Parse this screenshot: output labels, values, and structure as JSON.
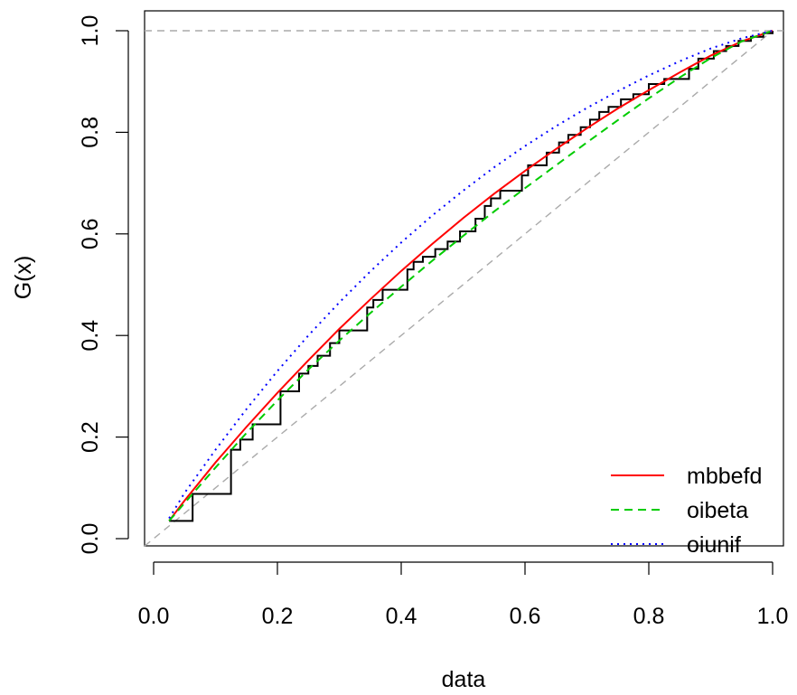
{
  "chart_data": {
    "type": "line",
    "xlabel": "data",
    "ylabel": "G(x)",
    "xlim": [
      0.0,
      1.0
    ],
    "ylim": [
      0.0,
      1.0
    ],
    "x_ticks": [
      "0.0",
      "0.2",
      "0.4",
      "0.6",
      "0.8",
      "1.0"
    ],
    "y_ticks": [
      "0.0",
      "0.2",
      "0.4",
      "0.6",
      "0.8",
      "1.0"
    ],
    "grid": false,
    "legend_position": "bottom-right",
    "reference_lines": [
      {
        "kind": "horizontal",
        "y": 1.0,
        "color": "#aaaaaa",
        "style": "dashed"
      },
      {
        "kind": "diagonal",
        "from": [
          0,
          0
        ],
        "to": [
          1,
          1
        ],
        "color": "#aaaaaa",
        "style": "dashed"
      }
    ],
    "empirical": {
      "color": "#000000",
      "steps": [
        [
          0.025,
          0.035
        ],
        [
          0.063,
          0.088
        ],
        [
          0.125,
          0.175
        ],
        [
          0.14,
          0.195
        ],
        [
          0.16,
          0.225
        ],
        [
          0.205,
          0.29
        ],
        [
          0.235,
          0.325
        ],
        [
          0.25,
          0.34
        ],
        [
          0.265,
          0.36
        ],
        [
          0.285,
          0.385
        ],
        [
          0.3,
          0.41
        ],
        [
          0.345,
          0.455
        ],
        [
          0.355,
          0.47
        ],
        [
          0.37,
          0.49
        ],
        [
          0.41,
          0.53
        ],
        [
          0.42,
          0.545
        ],
        [
          0.435,
          0.555
        ],
        [
          0.455,
          0.57
        ],
        [
          0.475,
          0.585
        ],
        [
          0.495,
          0.605
        ],
        [
          0.52,
          0.63
        ],
        [
          0.535,
          0.655
        ],
        [
          0.545,
          0.67
        ],
        [
          0.56,
          0.685
        ],
        [
          0.595,
          0.715
        ],
        [
          0.605,
          0.735
        ],
        [
          0.635,
          0.76
        ],
        [
          0.655,
          0.78
        ],
        [
          0.67,
          0.795
        ],
        [
          0.69,
          0.81
        ],
        [
          0.705,
          0.825
        ],
        [
          0.72,
          0.84
        ],
        [
          0.735,
          0.85
        ],
        [
          0.755,
          0.865
        ],
        [
          0.775,
          0.875
        ],
        [
          0.8,
          0.895
        ],
        [
          0.825,
          0.905
        ],
        [
          0.865,
          0.925
        ],
        [
          0.88,
          0.945
        ],
        [
          0.905,
          0.96
        ],
        [
          0.925,
          0.97
        ],
        [
          0.945,
          0.98
        ],
        [
          0.965,
          0.988
        ],
        [
          0.985,
          0.995
        ],
        [
          1.0,
          1.0
        ]
      ]
    },
    "series": [
      {
        "name": "mbbefd",
        "color": "#ff0000",
        "style": "solid",
        "x": [
          0.025,
          0.05,
          0.1,
          0.15,
          0.2,
          0.25,
          0.3,
          0.35,
          0.4,
          0.45,
          0.5,
          0.55,
          0.6,
          0.65,
          0.7,
          0.75,
          0.8,
          0.85,
          0.9,
          0.95,
          1.0
        ],
        "y": [
          0.035,
          0.075,
          0.15,
          0.22,
          0.287,
          0.351,
          0.413,
          0.471,
          0.527,
          0.58,
          0.631,
          0.679,
          0.724,
          0.767,
          0.808,
          0.847,
          0.883,
          0.918,
          0.951,
          0.979,
          1.0
        ]
      },
      {
        "name": "oibeta",
        "color": "#00cc00",
        "style": "dashed",
        "x": [
          0.025,
          0.05,
          0.1,
          0.15,
          0.2,
          0.25,
          0.3,
          0.35,
          0.4,
          0.45,
          0.5,
          0.55,
          0.6,
          0.65,
          0.7,
          0.75,
          0.8,
          0.85,
          0.9,
          0.95,
          1.0
        ],
        "y": [
          0.035,
          0.07,
          0.14,
          0.208,
          0.272,
          0.333,
          0.39,
          0.444,
          0.496,
          0.547,
          0.596,
          0.644,
          0.69,
          0.735,
          0.78,
          0.824,
          0.867,
          0.908,
          0.946,
          0.979,
          1.0
        ]
      },
      {
        "name": "oiunif",
        "color": "#0000ff",
        "style": "dotted",
        "x": [
          0.025,
          0.05,
          0.1,
          0.15,
          0.2,
          0.25,
          0.3,
          0.35,
          0.4,
          0.45,
          0.5,
          0.55,
          0.6,
          0.65,
          0.7,
          0.75,
          0.8,
          0.85,
          0.9,
          0.95,
          1.0
        ],
        "y": [
          0.04,
          0.09,
          0.175,
          0.255,
          0.33,
          0.4,
          0.465,
          0.526,
          0.583,
          0.636,
          0.685,
          0.731,
          0.773,
          0.812,
          0.848,
          0.881,
          0.912,
          0.94,
          0.965,
          0.985,
          1.0
        ]
      }
    ]
  }
}
